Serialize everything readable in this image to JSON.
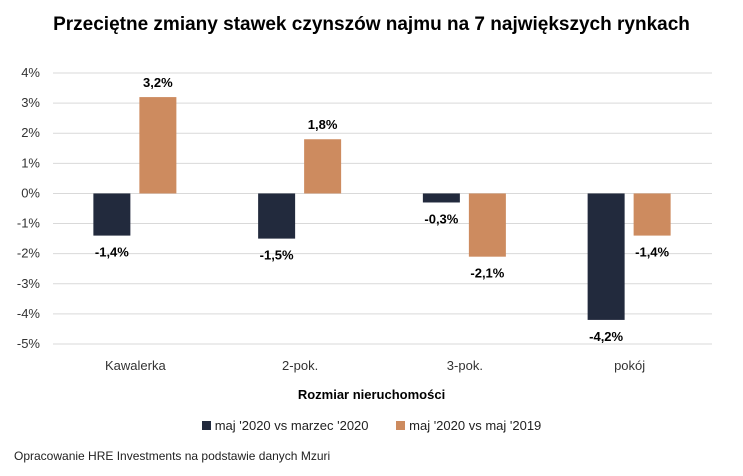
{
  "chart_data": {
    "type": "bar",
    "title": "Przeciętne zmiany stawek czynszów najmu na 7 największych rynkach",
    "xlabel": "Rozmiar nieruchomości",
    "ylabel": "",
    "categories": [
      "Kawalerka",
      "2-pok.",
      "3-pok.",
      "pokój"
    ],
    "series": [
      {
        "name": "maj '2020 vs marzec '2020",
        "color": "#222a3d",
        "values": [
          -1.4,
          -1.5,
          -0.3,
          -4.2
        ],
        "labels": [
          "-1,4%",
          "-1,5%",
          "-0,3%",
          "-4,2%"
        ]
      },
      {
        "name": "maj '2020 vs maj '2019",
        "color": "#cd8b5f",
        "values": [
          3.2,
          1.8,
          -2.1,
          -1.4
        ],
        "labels": [
          "3,2%",
          "1,8%",
          "-2,1%",
          "-1,4%"
        ]
      }
    ],
    "ylim": [
      -5,
      4
    ],
    "yticks": [
      4,
      3,
      2,
      1,
      0,
      -1,
      -2,
      -3,
      -4,
      -5
    ],
    "ytick_labels": [
      "4%",
      "3%",
      "2%",
      "1%",
      "0%",
      "-1%",
      "-2%",
      "-3%",
      "-4%",
      "-5%"
    ],
    "grid": true,
    "legend": "bottom"
  },
  "source": "Opracowanie HRE Investments na podstawie danych Mzuri"
}
